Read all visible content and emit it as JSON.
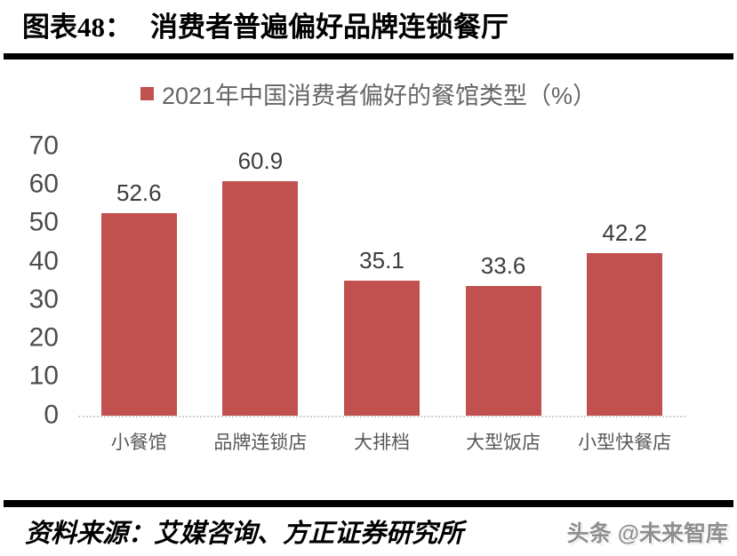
{
  "header": {
    "label": "图表48：",
    "title": "消费者普遍偏好品牌连锁餐厅"
  },
  "chart_data": {
    "type": "bar",
    "title": "2021年中国消费者偏好的餐馆类型（%）",
    "categories": [
      "小餐馆",
      "品牌连锁店",
      "大排档",
      "大型饭店",
      "小型快餐店"
    ],
    "values": [
      52.6,
      60.9,
      35.1,
      33.6,
      42.2
    ],
    "xlabel": "",
    "ylabel": "",
    "ylim": [
      0,
      70
    ],
    "yticks": [
      0,
      10,
      20,
      30,
      40,
      50,
      60,
      70
    ],
    "grid": false,
    "legend_position": "top-center",
    "bar_color": "#C1514E",
    "data_labels": true
  },
  "footer": {
    "source": "资料来源：艾媒咨询、方正证券研究所",
    "watermark": "头条 @未来智库"
  },
  "colors": {
    "accent": "#C1514E",
    "axis_text": "#4d4d4d",
    "category_text": "#595959",
    "legend_text": "#666666",
    "divider": "#000000",
    "baseline": "#cfcfcf"
  }
}
